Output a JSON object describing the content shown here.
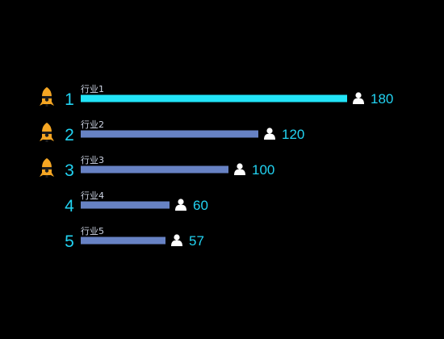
{
  "chart_data": {
    "type": "bar",
    "orientation": "horizontal",
    "categories": [
      "行业1",
      "行业2",
      "行业3",
      "行业4",
      "行业5"
    ],
    "ranks": [
      "1",
      "2",
      "3",
      "4",
      "5"
    ],
    "values": [
      180,
      120,
      100,
      60,
      57
    ],
    "value_labels": [
      "180",
      "120",
      "100",
      "60",
      "57"
    ],
    "xlim": [
      0,
      180
    ],
    "grid": false,
    "medal_ranks": [
      1,
      2,
      3
    ]
  },
  "colors": {
    "background": "#000000",
    "top_bar": "#22e4f7",
    "other_bars": "#6782c4",
    "rank_text": "#22d3f2",
    "value_text": "#22d3f2",
    "category_text": "#cfd6e6",
    "person_icon": "#ffffff",
    "medal": "#f5a623",
    "medal_dark": "#1c1c1c"
  },
  "icons": {
    "medal": "rocket-medal-icon",
    "value": "person-icon"
  }
}
